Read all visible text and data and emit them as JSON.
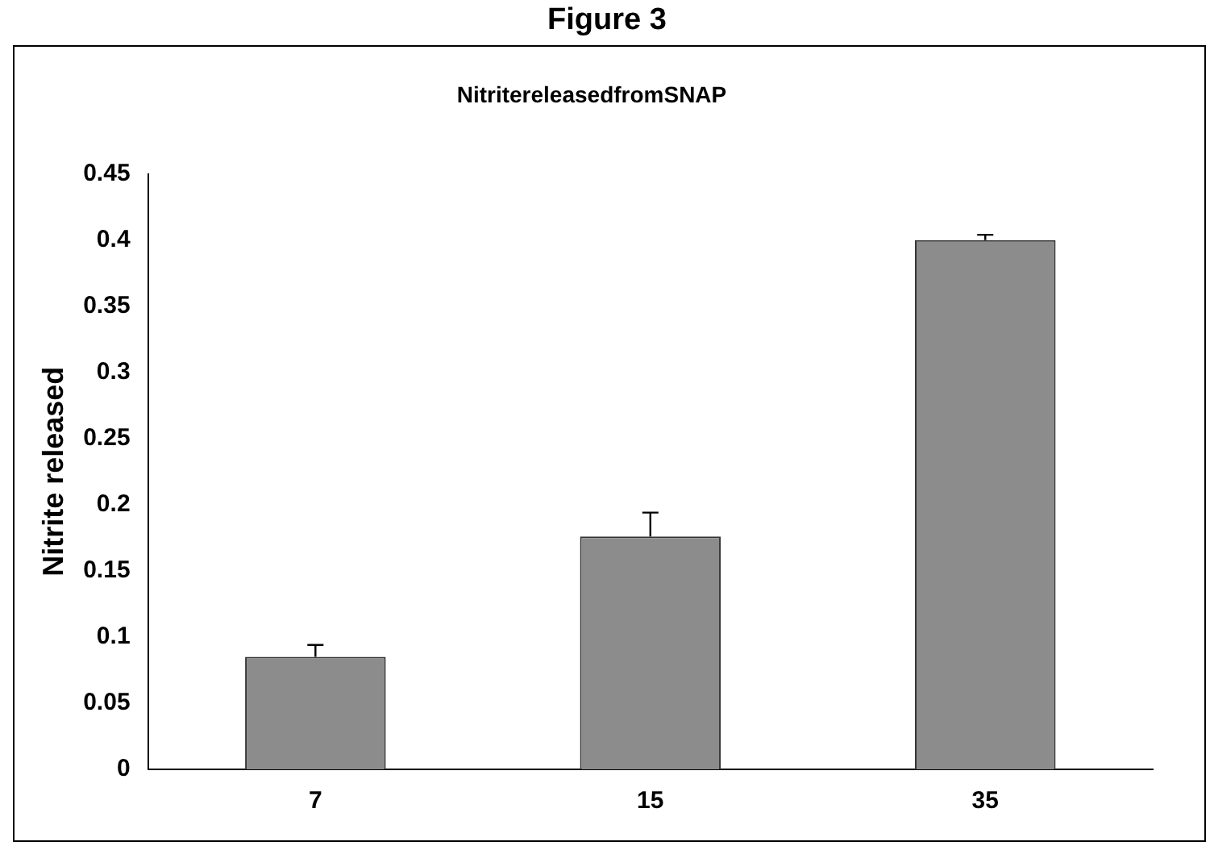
{
  "chart_data": {
    "type": "bar",
    "title": "Figure 3",
    "subtitle": "NitritereleasedfromSNAP",
    "ylabel": "Nitrite released",
    "categories": [
      "7",
      "15",
      "35"
    ],
    "values": [
      0.085,
      0.176,
      0.4
    ],
    "errors": [
      [
        0.085,
        0.094
      ],
      [
        0.176,
        0.194
      ],
      [
        0.4,
        0.404
      ]
    ],
    "color": "#8c8c8c",
    "ylim": [
      0,
      0.45
    ],
    "yticks": [
      0,
      0.05,
      0.1,
      0.15,
      0.2,
      0.25,
      0.3,
      0.35,
      0.4,
      0.45
    ],
    "grid": false,
    "legend": false
  }
}
